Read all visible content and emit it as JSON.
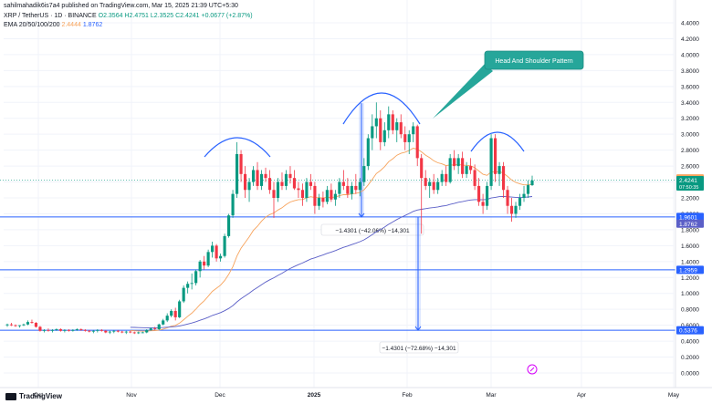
{
  "header": {
    "publisher": "sahilmahadik6is7a4 published on TradingView.com, Mar 15, 2025 21:39 UTC+5:30",
    "symbol": "XRP / TetherUS · 1D · BINANCE",
    "ohlc": "O2.3564 H2.4751 L2.3525 C2.4241 +0.0677 (+2.87%)",
    "ema_label": "EMA 20/50/100/200",
    "ema_value1": "2.4444",
    "ema_value2": "1.8762"
  },
  "footer": {
    "logo_text": "TradingView"
  },
  "colors": {
    "up": "#089981",
    "down": "#f23645",
    "ema_orange": "#f7a35c",
    "ema_blue": "#5b5fc7",
    "level_line": "#2962ff",
    "callout": "#26a69a",
    "price_badge": "#089981"
  },
  "chart_data": {
    "type": "candlestick",
    "x_labels": [
      "Oct",
      "Nov",
      "Dec",
      "2025",
      "Feb",
      "Mar",
      "Apr",
      "May"
    ],
    "y_ticks": [
      "4.4000",
      "4.2000",
      "4.0000",
      "3.8000",
      "3.6000",
      "3.4000",
      "3.2000",
      "3.0000",
      "2.8000",
      "2.6000",
      "2.4000",
      "2.2000",
      "2.0000",
      "1.8000",
      "1.6000",
      "1.4000",
      "1.2000",
      "1.0000",
      "0.8000",
      "0.6000",
      "0.4000",
      "0.2000",
      "0.0000"
    ],
    "ylim": [
      0,
      4.45
    ],
    "levels": [
      {
        "value": 1.9601,
        "label": "1.9601"
      },
      {
        "value": 1.2959,
        "label": "1.2959"
      },
      {
        "value": 0.5376,
        "label": "0.5376"
      }
    ],
    "price_badges": [
      {
        "value": 2.4444,
        "label": "2.4444",
        "kind": "ema"
      },
      {
        "value": 2.4241,
        "label": "2.4241",
        "sub": "07:50:35",
        "kind": "last"
      },
      {
        "value": 1.8762,
        "label": "1.8762",
        "kind": "ema200"
      }
    ],
    "annotations": {
      "pattern_label": "Head And Shoulder Pattern",
      "measure1": "−1.4301 (−42.06%) −14,301",
      "measure2": "−1.4301 (−72.68%) −14,301"
    },
    "candles": [
      [
        0.6,
        0.62,
        0.58,
        0.61
      ],
      [
        0.61,
        0.63,
        0.59,
        0.6
      ],
      [
        0.6,
        0.61,
        0.58,
        0.59
      ],
      [
        0.59,
        0.6,
        0.57,
        0.6
      ],
      [
        0.6,
        0.62,
        0.59,
        0.61
      ],
      [
        0.61,
        0.66,
        0.6,
        0.64
      ],
      [
        0.64,
        0.67,
        0.62,
        0.63
      ],
      [
        0.63,
        0.64,
        0.57,
        0.58
      ],
      [
        0.58,
        0.59,
        0.52,
        0.53
      ],
      [
        0.53,
        0.55,
        0.51,
        0.54
      ],
      [
        0.54,
        0.56,
        0.52,
        0.53
      ],
      [
        0.53,
        0.55,
        0.51,
        0.54
      ],
      [
        0.54,
        0.56,
        0.53,
        0.55
      ],
      [
        0.55,
        0.56,
        0.52,
        0.53
      ],
      [
        0.53,
        0.55,
        0.51,
        0.54
      ],
      [
        0.54,
        0.55,
        0.52,
        0.53
      ],
      [
        0.53,
        0.55,
        0.52,
        0.54
      ],
      [
        0.54,
        0.56,
        0.53,
        0.55
      ],
      [
        0.55,
        0.56,
        0.53,
        0.54
      ],
      [
        0.54,
        0.55,
        0.52,
        0.53
      ],
      [
        0.53,
        0.54,
        0.51,
        0.52
      ],
      [
        0.52,
        0.54,
        0.5,
        0.53
      ],
      [
        0.53,
        0.55,
        0.51,
        0.54
      ],
      [
        0.54,
        0.55,
        0.52,
        0.53
      ],
      [
        0.53,
        0.54,
        0.5,
        0.51
      ],
      [
        0.51,
        0.53,
        0.49,
        0.52
      ],
      [
        0.52,
        0.54,
        0.5,
        0.53
      ],
      [
        0.53,
        0.54,
        0.51,
        0.52
      ],
      [
        0.52,
        0.53,
        0.5,
        0.51
      ],
      [
        0.51,
        0.53,
        0.49,
        0.52
      ],
      [
        0.52,
        0.53,
        0.5,
        0.51
      ],
      [
        0.51,
        0.52,
        0.49,
        0.5
      ],
      [
        0.5,
        0.52,
        0.49,
        0.51
      ],
      [
        0.51,
        0.52,
        0.5,
        0.51
      ],
      [
        0.51,
        0.55,
        0.5,
        0.54
      ],
      [
        0.54,
        0.57,
        0.53,
        0.56
      ],
      [
        0.56,
        0.58,
        0.54,
        0.55
      ],
      [
        0.55,
        0.62,
        0.54,
        0.61
      ],
      [
        0.61,
        0.68,
        0.6,
        0.66
      ],
      [
        0.66,
        0.75,
        0.64,
        0.72
      ],
      [
        0.72,
        0.8,
        0.7,
        0.78
      ],
      [
        0.78,
        0.82,
        0.66,
        0.7
      ],
      [
        0.7,
        0.92,
        0.69,
        0.9
      ],
      [
        0.9,
        1.1,
        0.88,
        1.07
      ],
      [
        1.07,
        1.15,
        1.0,
        1.12
      ],
      [
        1.12,
        1.25,
        1.05,
        1.13
      ],
      [
        1.13,
        1.3,
        1.1,
        1.28
      ],
      [
        1.28,
        1.42,
        1.2,
        1.4
      ],
      [
        1.4,
        1.47,
        1.3,
        1.35
      ],
      [
        1.35,
        1.55,
        1.33,
        1.52
      ],
      [
        1.52,
        1.65,
        1.45,
        1.6
      ],
      [
        1.6,
        1.62,
        1.4,
        1.44
      ],
      [
        1.44,
        1.5,
        1.4,
        1.47
      ],
      [
        1.47,
        1.75,
        1.45,
        1.72
      ],
      [
        1.72,
        2.0,
        1.7,
        1.98
      ],
      [
        1.98,
        2.3,
        1.95,
        2.25
      ],
      [
        2.25,
        2.9,
        2.2,
        2.75
      ],
      [
        2.75,
        2.8,
        2.4,
        2.5
      ],
      [
        2.5,
        2.6,
        2.2,
        2.3
      ],
      [
        2.3,
        2.45,
        2.15,
        2.4
      ],
      [
        2.4,
        2.6,
        2.35,
        2.55
      ],
      [
        2.55,
        2.65,
        2.3,
        2.35
      ],
      [
        2.35,
        2.55,
        2.3,
        2.5
      ],
      [
        2.5,
        2.58,
        2.4,
        2.45
      ],
      [
        2.45,
        2.55,
        2.25,
        2.3
      ],
      [
        2.3,
        2.4,
        1.95,
        2.2
      ],
      [
        2.2,
        2.45,
        2.15,
        2.4
      ],
      [
        2.4,
        2.52,
        2.3,
        2.35
      ],
      [
        2.35,
        2.55,
        2.3,
        2.5
      ],
      [
        2.5,
        2.6,
        2.38,
        2.45
      ],
      [
        2.45,
        2.55,
        2.3,
        2.32
      ],
      [
        2.32,
        2.4,
        2.2,
        2.3
      ],
      [
        2.3,
        2.38,
        2.1,
        2.2
      ],
      [
        2.2,
        2.45,
        2.15,
        2.4
      ],
      [
        2.4,
        2.5,
        2.3,
        2.35
      ],
      [
        2.35,
        2.4,
        2.0,
        2.1
      ],
      [
        2.1,
        2.25,
        2.05,
        2.2
      ],
      [
        2.2,
        2.28,
        2.08,
        2.15
      ],
      [
        2.15,
        2.35,
        2.12,
        2.3
      ],
      [
        2.3,
        2.38,
        2.15,
        2.18
      ],
      [
        2.18,
        2.3,
        2.1,
        2.25
      ],
      [
        2.25,
        2.45,
        2.2,
        2.4
      ],
      [
        2.4,
        2.55,
        2.3,
        2.35
      ],
      [
        2.35,
        2.45,
        2.2,
        2.25
      ],
      [
        2.25,
        2.4,
        2.18,
        2.35
      ],
      [
        2.35,
        2.5,
        2.25,
        2.3
      ],
      [
        2.3,
        2.45,
        2.22,
        2.4
      ],
      [
        2.4,
        2.7,
        2.35,
        2.6
      ],
      [
        2.6,
        3.0,
        2.55,
        2.95
      ],
      [
        2.95,
        3.25,
        2.8,
        3.1
      ],
      [
        3.1,
        3.4,
        2.95,
        3.2
      ],
      [
        3.2,
        3.3,
        2.8,
        2.9
      ],
      [
        2.9,
        3.15,
        2.85,
        3.05
      ],
      [
        3.05,
        3.35,
        2.95,
        3.25
      ],
      [
        3.25,
        3.3,
        3.0,
        3.05
      ],
      [
        3.05,
        3.2,
        2.9,
        3.15
      ],
      [
        3.15,
        3.25,
        2.95,
        3.0
      ],
      [
        3.0,
        3.1,
        2.8,
        2.9
      ],
      [
        2.9,
        3.05,
        2.75,
        3.0
      ],
      [
        3.0,
        3.15,
        2.9,
        3.1
      ],
      [
        3.1,
        3.12,
        2.6,
        2.7
      ],
      [
        2.7,
        2.75,
        1.75,
        2.45
      ],
      [
        2.45,
        2.55,
        2.3,
        2.35
      ],
      [
        2.35,
        2.45,
        2.2,
        2.4
      ],
      [
        2.4,
        2.5,
        2.25,
        2.3
      ],
      [
        2.3,
        2.45,
        2.25,
        2.4
      ],
      [
        2.4,
        2.55,
        2.35,
        2.5
      ],
      [
        2.5,
        2.6,
        2.35,
        2.4
      ],
      [
        2.4,
        2.75,
        2.38,
        2.7
      ],
      [
        2.7,
        2.8,
        2.55,
        2.6
      ],
      [
        2.6,
        2.75,
        2.5,
        2.7
      ],
      [
        2.7,
        2.78,
        2.45,
        2.5
      ],
      [
        2.5,
        2.65,
        2.45,
        2.6
      ],
      [
        2.6,
        2.7,
        2.5,
        2.55
      ],
      [
        2.55,
        2.62,
        2.3,
        2.35
      ],
      [
        2.35,
        2.45,
        2.1,
        2.15
      ],
      [
        2.15,
        2.25,
        2.0,
        2.1
      ],
      [
        2.1,
        2.4,
        2.05,
        2.35
      ],
      [
        2.35,
        3.0,
        2.3,
        2.95
      ],
      [
        2.95,
        3.0,
        2.4,
        2.5
      ],
      [
        2.5,
        2.65,
        2.35,
        2.6
      ],
      [
        2.6,
        2.65,
        2.2,
        2.3
      ],
      [
        2.3,
        2.35,
        2.0,
        2.1
      ],
      [
        2.1,
        2.2,
        1.9,
        2.0
      ],
      [
        2.0,
        2.15,
        1.95,
        2.1
      ],
      [
        2.1,
        2.25,
        2.05,
        2.2
      ],
      [
        2.2,
        2.35,
        2.15,
        2.25
      ],
      [
        2.25,
        2.42,
        2.2,
        2.36
      ],
      [
        2.36,
        2.48,
        2.35,
        2.42
      ]
    ]
  }
}
